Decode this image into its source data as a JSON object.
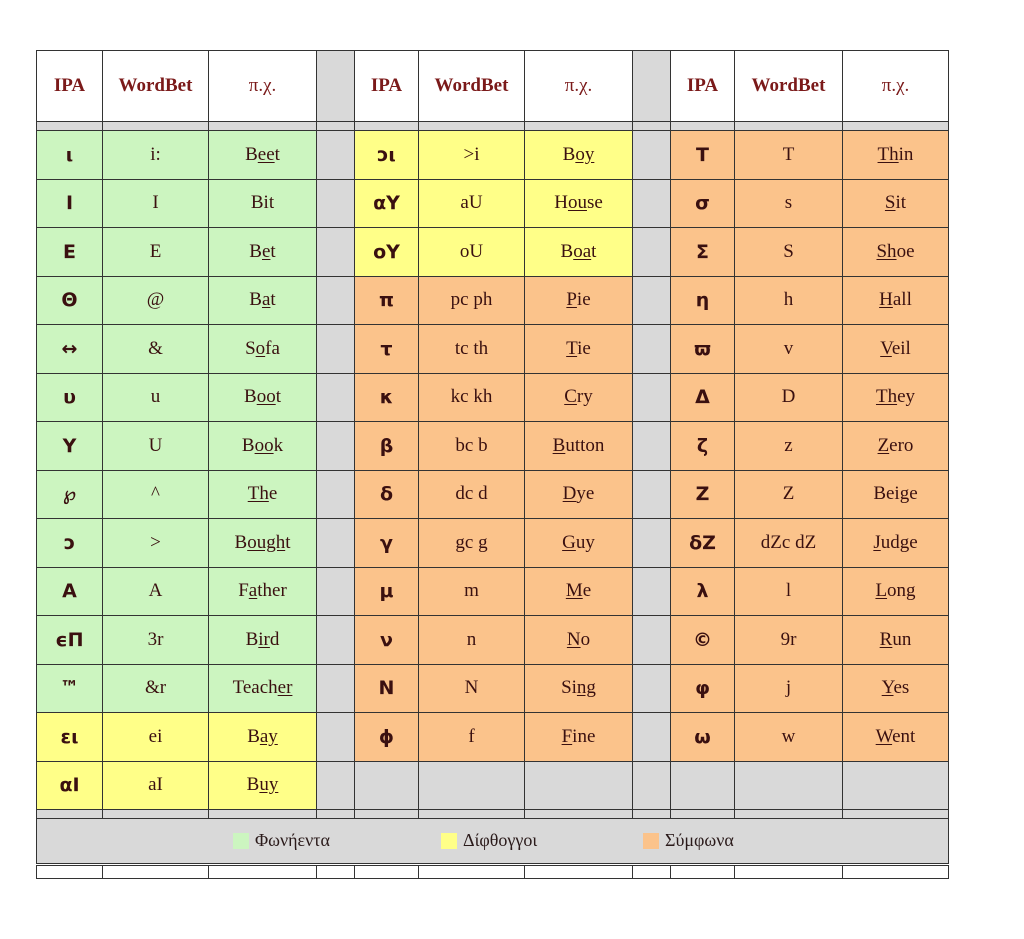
{
  "headers": [
    {
      "ipa": "IPA",
      "wordbet": "WordBet",
      "example": "π.χ."
    },
    {
      "ipa": "IPA",
      "wordbet": "WordBet",
      "example": "π.χ."
    },
    {
      "ipa": "IPA",
      "wordbet": "WordBet",
      "example": "π.χ."
    }
  ],
  "colors": {
    "vowel": "#ccf5c0",
    "diphthong": "#ffff88",
    "consonant": "#fbc38b",
    "gap": "#d9d9d9"
  },
  "rows": [
    [
      {
        "type": "v",
        "ipa": "ι",
        "wb": "i:",
        "ex": [
          [
            "B",
            ""
          ],
          [
            "ee",
            "u"
          ],
          [
            "t",
            ""
          ]
        ]
      },
      {
        "type": "d",
        "ipa": "ɔι",
        "wb": ">i",
        "ex": [
          [
            "B",
            ""
          ],
          [
            "oy",
            "u"
          ]
        ]
      },
      {
        "type": "c",
        "ipa": "Τ",
        "wb": "T",
        "ex": [
          [
            "Th",
            "u"
          ],
          [
            "in",
            ""
          ]
        ]
      }
    ],
    [
      {
        "type": "v",
        "ipa": "Ι",
        "wb": "I",
        "ex": [
          [
            "Bit",
            ""
          ]
        ]
      },
      {
        "type": "d",
        "ipa": "αΥ",
        "wb": "aU",
        "ex": [
          [
            "H",
            ""
          ],
          [
            "ou",
            "u"
          ],
          [
            "se",
            ""
          ]
        ]
      },
      {
        "type": "c",
        "ipa": "σ",
        "wb": "s",
        "ex": [
          [
            "S",
            "u"
          ],
          [
            "it",
            ""
          ]
        ]
      }
    ],
    [
      {
        "type": "v",
        "ipa": "Ε",
        "wb": "E",
        "ex": [
          [
            "B",
            ""
          ],
          [
            "e",
            "u"
          ],
          [
            "t",
            ""
          ]
        ]
      },
      {
        "type": "d",
        "ipa": "οΥ",
        "wb": "oU",
        "ex": [
          [
            "B",
            ""
          ],
          [
            "oa",
            "u"
          ],
          [
            "t",
            ""
          ]
        ]
      },
      {
        "type": "c",
        "ipa": "Σ",
        "wb": "S",
        "ex": [
          [
            "Sh",
            "u"
          ],
          [
            "oe",
            ""
          ]
        ]
      }
    ],
    [
      {
        "type": "v",
        "ipa": "Θ",
        "wb": "@",
        "ex": [
          [
            "B",
            ""
          ],
          [
            "a",
            "u"
          ],
          [
            "t",
            ""
          ]
        ]
      },
      {
        "type": "c",
        "ipa": "π",
        "wb": "pc ph",
        "ex": [
          [
            "P",
            "u"
          ],
          [
            "ie",
            ""
          ]
        ]
      },
      {
        "type": "c",
        "ipa": "η",
        "wb": "h",
        "ex": [
          [
            "H",
            "u"
          ],
          [
            "all",
            ""
          ]
        ]
      }
    ],
    [
      {
        "type": "v",
        "ipa": "↔",
        "wb": "&",
        "ex": [
          [
            "S",
            ""
          ],
          [
            "o",
            "u"
          ],
          [
            "fa",
            ""
          ]
        ]
      },
      {
        "type": "c",
        "ipa": "τ",
        "wb": "tc th",
        "ex": [
          [
            "T",
            "u"
          ],
          [
            "ie",
            ""
          ]
        ]
      },
      {
        "type": "c",
        "ipa": "ϖ",
        "wb": "v",
        "ex": [
          [
            "V",
            "u"
          ],
          [
            "eil",
            ""
          ]
        ]
      }
    ],
    [
      {
        "type": "v",
        "ipa": "υ",
        "wb": "u",
        "ex": [
          [
            "B",
            ""
          ],
          [
            "oo",
            "u"
          ],
          [
            "t",
            ""
          ]
        ]
      },
      {
        "type": "c",
        "ipa": "κ",
        "wb": "kc kh",
        "ex": [
          [
            "C",
            "u"
          ],
          [
            "ry",
            ""
          ]
        ]
      },
      {
        "type": "c",
        "ipa": "Δ",
        "wb": "D",
        "ex": [
          [
            "Th",
            "u"
          ],
          [
            "ey",
            ""
          ]
        ]
      }
    ],
    [
      {
        "type": "v",
        "ipa": "Υ",
        "wb": "U",
        "ex": [
          [
            "B",
            ""
          ],
          [
            "oo",
            "u"
          ],
          [
            "k",
            ""
          ]
        ]
      },
      {
        "type": "c",
        "ipa": "β",
        "wb": "bc b",
        "ex": [
          [
            "B",
            "u"
          ],
          [
            "utton",
            ""
          ]
        ]
      },
      {
        "type": "c",
        "ipa": "ζ",
        "wb": "z",
        "ex": [
          [
            "Z",
            "u"
          ],
          [
            "ero",
            ""
          ]
        ]
      }
    ],
    [
      {
        "type": "v",
        "ipa": "℘",
        "wb": "^",
        "ex": [
          [
            "Th",
            "u"
          ],
          [
            "e",
            ""
          ]
        ]
      },
      {
        "type": "c",
        "ipa": "δ",
        "wb": "dc d",
        "ex": [
          [
            "D",
            "u"
          ],
          [
            "ye",
            ""
          ]
        ]
      },
      {
        "type": "c",
        "ipa": "Ζ",
        "wb": "Z",
        "ex": [
          [
            "Beige",
            ""
          ]
        ]
      }
    ],
    [
      {
        "type": "v",
        "ipa": "ɔ",
        "wb": ">",
        "ex": [
          [
            "B",
            ""
          ],
          [
            "ough",
            "u"
          ],
          [
            "t",
            ""
          ]
        ]
      },
      {
        "type": "c",
        "ipa": "γ",
        "wb": "gc g",
        "ex": [
          [
            "G",
            "u"
          ],
          [
            "uy",
            ""
          ]
        ]
      },
      {
        "type": "c",
        "ipa": "δΖ",
        "wb": "dZc dZ",
        "ex": [
          [
            "J",
            "u"
          ],
          [
            "udge",
            ""
          ]
        ]
      }
    ],
    [
      {
        "type": "v",
        "ipa": "Α",
        "wb": "A",
        "ex": [
          [
            "F",
            ""
          ],
          [
            "a",
            "u"
          ],
          [
            "ther",
            ""
          ]
        ]
      },
      {
        "type": "c",
        "ipa": "μ",
        "wb": "m",
        "ex": [
          [
            "M",
            "u"
          ],
          [
            "e",
            ""
          ]
        ]
      },
      {
        "type": "c",
        "ipa": "λ",
        "wb": "l",
        "ex": [
          [
            "L",
            "u"
          ],
          [
            "ong",
            ""
          ]
        ]
      }
    ],
    [
      {
        "type": "v",
        "ipa": "ϵΠ",
        "wb": "3r",
        "ex": [
          [
            "B",
            ""
          ],
          [
            "ir",
            "u"
          ],
          [
            "d",
            ""
          ]
        ]
      },
      {
        "type": "c",
        "ipa": "ν",
        "wb": "n",
        "ex": [
          [
            "N",
            "u"
          ],
          [
            "o",
            ""
          ]
        ]
      },
      {
        "type": "c",
        "ipa": "©",
        "wb": "9r",
        "ex": [
          [
            "R",
            "u"
          ],
          [
            "un",
            ""
          ]
        ]
      }
    ],
    [
      {
        "type": "v",
        "ipa": "™",
        "wb": "&r",
        "ex": [
          [
            "Teach",
            ""
          ],
          [
            "er",
            "u"
          ]
        ]
      },
      {
        "type": "c",
        "ipa": "Ν",
        "wb": "N",
        "ex": [
          [
            "Si",
            ""
          ],
          [
            "ng",
            "u"
          ]
        ]
      },
      {
        "type": "c",
        "ipa": "φ",
        "wb": "j",
        "ex": [
          [
            "Y",
            "u"
          ],
          [
            "es",
            ""
          ]
        ]
      }
    ],
    [
      {
        "type": "d",
        "ipa": "ει",
        "wb": "ei",
        "ex": [
          [
            "B",
            ""
          ],
          [
            "ay",
            "u"
          ]
        ]
      },
      {
        "type": "c",
        "ipa": "ϕ",
        "wb": "f",
        "ex": [
          [
            "F",
            "u"
          ],
          [
            "ine",
            ""
          ]
        ]
      },
      {
        "type": "c",
        "ipa": "ω",
        "wb": "w",
        "ex": [
          [
            "W",
            "u"
          ],
          [
            "ent",
            ""
          ]
        ]
      }
    ],
    [
      {
        "type": "d",
        "ipa": "αΙ",
        "wb": "aI",
        "ex": [
          [
            "B",
            ""
          ],
          [
            "uy",
            "u"
          ]
        ]
      },
      {
        "type": "empty"
      },
      {
        "type": "empty"
      }
    ]
  ],
  "legend": [
    {
      "type": "v",
      "label": "Φωνήεντα"
    },
    {
      "type": "d",
      "label": "Δίφθογγοι"
    },
    {
      "type": "c",
      "label": "Σύμφωνα"
    }
  ]
}
